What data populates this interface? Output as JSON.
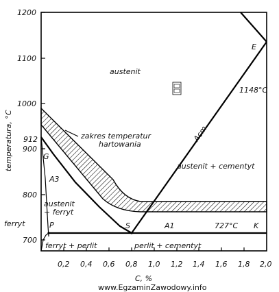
{
  "chart_data": {
    "type": "diagram",
    "ylabel": "temperatura, °C",
    "xlabel": "C, %",
    "y_ticks": [
      "1200",
      "1100",
      "1000",
      "900",
      "800",
      "700"
    ],
    "y_extra_tick": "912",
    "x_ticks": [
      "0,2",
      "0,4",
      "0,6",
      "0,8",
      "1,0",
      "1,2",
      "1,4",
      "1,6",
      "1,8",
      "2,0"
    ],
    "xlim": [
      0,
      2.0
    ],
    "ylim": [
      680,
      1200
    ],
    "phases": {
      "austenit": "austenit",
      "austenit_cementyt": "austenit + cementyt",
      "austenit_ferryt": "austenit\n+ ferryt",
      "ferryt": "ferryt",
      "ferryt_perlit": "ferryt + perlit",
      "perlit_cementyt": "perlit + cementyt"
    },
    "annotations": {
      "hardening_range": [
        "zakres temperatur",
        "hartowania"
      ],
      "a3": "A3",
      "acm": "Acm",
      "a1": "A1",
      "temp_727": "727°C",
      "temp_1148": "1148°C",
      "point_e": "E",
      "point_g": "G",
      "point_p": "P",
      "point_s": "S",
      "point_k": "K"
    },
    "lines": {
      "A3": [
        [
          0,
          912
        ],
        [
          0.8,
          727
        ]
      ],
      "Acm": [
        [
          0.8,
          727
        ],
        [
          2.0,
          1148
        ]
      ],
      "A1": [
        [
          0.02,
          727
        ],
        [
          2.0,
          727
        ]
      ]
    }
  },
  "watermark": "www.EgzaminZawodowy.info"
}
